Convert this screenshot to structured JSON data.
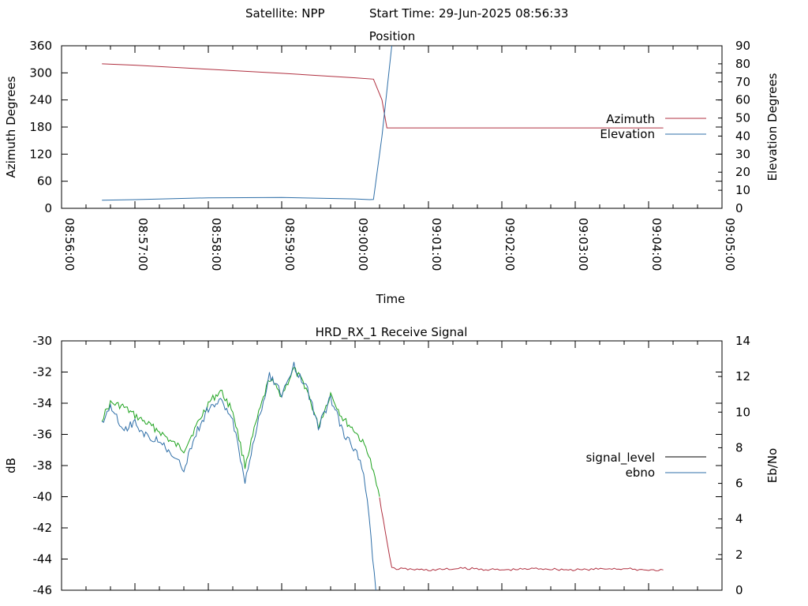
{
  "header": {
    "satellite": "Satellite: NPP",
    "start_time": "Start Time: 29-Jun-2025 08:56:33"
  },
  "colors": {
    "azimuth": "#b03040",
    "elevation": "#2f6fa8",
    "signal_level": "#000000",
    "ebno": "#2f6fa8",
    "green": "#1fa31f",
    "red_tail": "#b03040"
  },
  "chart_data": [
    {
      "type": "line",
      "title": "Position",
      "xlabel": "Time",
      "ylabel": "Azimuth Degrees",
      "y2label": "Elevation Degrees",
      "xlim": [
        "08:56:00",
        "09:05:00"
      ],
      "x_tick_labels": [
        "08:56:00",
        "08:57:00",
        "08:58:00",
        "08:59:00",
        "09:00:00",
        "09:01:00",
        "09:02:00",
        "09:03:00",
        "09:04:00",
        "09:05:00"
      ],
      "ylim": [
        0,
        360
      ],
      "y_ticks": [
        0,
        60,
        120,
        180,
        240,
        300,
        360
      ],
      "y2lim": [
        0,
        90
      ],
      "y2_ticks": [
        0,
        10,
        20,
        30,
        40,
        50,
        60,
        70,
        80,
        90
      ],
      "legend_position": "right",
      "series": [
        {
          "name": "Azimuth",
          "axis": "y",
          "x": [
            "08:56:33",
            "08:57:00",
            "08:58:00",
            "08:59:00",
            "09:00:00",
            "09:00:15",
            "09:00:22",
            "09:00:26",
            "09:01:00",
            "09:02:00",
            "09:03:00",
            "09:04:00",
            "09:04:12"
          ],
          "y": [
            320,
            317,
            308,
            299,
            289,
            286,
            240,
            178,
            178,
            178,
            178,
            178,
            178
          ]
        },
        {
          "name": "Elevation",
          "axis": "y2",
          "x": [
            "08:56:33",
            "08:57:00",
            "08:58:00",
            "08:59:00",
            "09:00:00",
            "09:00:12",
            "09:00:15",
            "09:00:22",
            "09:00:30"
          ],
          "y": [
            4.5,
            4.8,
            5.8,
            6.0,
            5.2,
            4.8,
            4.9,
            40,
            90
          ]
        }
      ]
    },
    {
      "type": "line",
      "title": "HRD_RX_1 Receive Signal",
      "xlabel": "",
      "ylabel": "dB",
      "y2label": "Eb/No",
      "xlim": [
        "08:56:00",
        "09:05:00"
      ],
      "ylim": [
        -46,
        -30
      ],
      "y_ticks": [
        -46,
        -44,
        -42,
        -40,
        -38,
        -36,
        -34,
        -32,
        -30
      ],
      "y2lim": [
        0,
        14
      ],
      "y2_ticks": [
        0,
        2,
        4,
        6,
        8,
        10,
        12,
        14
      ],
      "legend_position": "right",
      "series": [
        {
          "name": "signal_level",
          "axis": "y",
          "x": [
            "08:56:33",
            "08:56:40",
            "08:56:50",
            "08:57:00",
            "08:57:10",
            "08:57:20",
            "08:57:30",
            "08:57:40",
            "08:57:50",
            "08:58:00",
            "08:58:10",
            "08:58:20",
            "08:58:30",
            "08:58:40",
            "08:58:50",
            "08:59:00",
            "08:59:10",
            "08:59:20",
            "08:59:30",
            "08:59:40",
            "08:59:50",
            "09:00:00",
            "09:00:10",
            "09:00:15",
            "09:00:20",
            "09:00:23",
            "09:00:30",
            "09:01:00",
            "09:01:30",
            "09:02:00",
            "09:02:30",
            "09:03:00",
            "09:03:30",
            "09:04:00",
            "09:04:12"
          ],
          "y": [
            -35.0,
            -34.0,
            -34.2,
            -34.8,
            -35.3,
            -35.8,
            -36.5,
            -37.0,
            -35.5,
            -34.0,
            -33.2,
            -34.5,
            -38.0,
            -35.0,
            -32.4,
            -33.5,
            -31.8,
            -33.0,
            -35.5,
            -33.4,
            -35.0,
            -35.8,
            -37.0,
            -38.5,
            -40.0,
            -41.5,
            -44.6,
            -44.7,
            -44.6,
            -44.7,
            -44.6,
            -44.7,
            -44.6,
            -44.7,
            -44.7
          ]
        },
        {
          "name": "ebno",
          "axis": "y2",
          "x": [
            "08:56:33",
            "08:56:40",
            "08:56:50",
            "08:57:00",
            "08:57:10",
            "08:57:20",
            "08:57:30",
            "08:57:40",
            "08:57:50",
            "08:58:00",
            "08:58:10",
            "08:58:20",
            "08:58:30",
            "08:58:40",
            "08:58:50",
            "08:59:00",
            "08:59:10",
            "08:59:20",
            "08:59:30",
            "08:59:40",
            "08:59:50",
            "09:00:00",
            "09:00:07",
            "09:00:10",
            "09:00:13",
            "09:00:17"
          ],
          "y": [
            9.3,
            10.5,
            9.0,
            9.4,
            8.6,
            8.5,
            7.5,
            6.8,
            8.8,
            10.2,
            10.6,
            9.6,
            6.2,
            9.2,
            12.1,
            11.0,
            12.6,
            11.5,
            9.2,
            10.8,
            8.9,
            7.9,
            6.6,
            5.2,
            3.0,
            0
          ]
        }
      ]
    }
  ]
}
